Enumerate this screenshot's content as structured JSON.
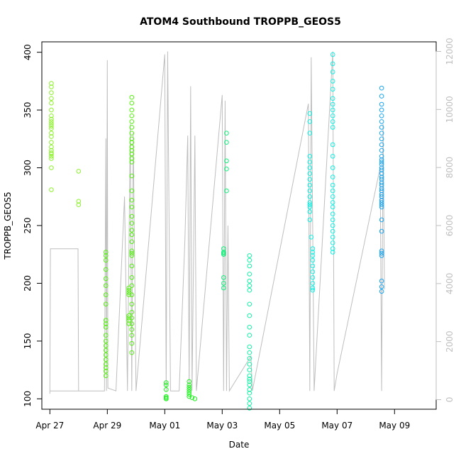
{
  "chart_data": {
    "type": "scatter",
    "title": "ATOM4 Southbound TROPPB_GEOS5",
    "xlabel": "Date",
    "ylabel": "TROPPB_GEOS5",
    "x_ticks": [
      "Apr 27",
      "Apr 29",
      "May 01",
      "May 03",
      "May 05",
      "May 07",
      "May 09"
    ],
    "x_tick_days": [
      0,
      2,
      4,
      6,
      8,
      10,
      12
    ],
    "xlim_days": [
      -0.28,
      13.45
    ],
    "y_ticks": [
      100,
      150,
      200,
      250,
      300,
      350,
      400
    ],
    "ylim": [
      91,
      409
    ],
    "y2_ticks": [
      0,
      2000,
      4000,
      6000,
      8000,
      10000,
      12000
    ],
    "y2lim": [
      -330,
      12330
    ],
    "grid": false,
    "legend": "none",
    "series": [
      {
        "color": "#8cf22b",
        "points": [
          [
            0.05,
            373
          ],
          [
            0.05,
            370
          ],
          [
            0.05,
            365
          ],
          [
            0.05,
            360
          ],
          [
            0.05,
            356
          ],
          [
            0.05,
            350
          ],
          [
            0.05,
            345
          ],
          [
            0.05,
            342
          ],
          [
            0.05,
            340
          ],
          [
            0.05,
            338
          ],
          [
            0.05,
            336
          ],
          [
            0.05,
            334
          ],
          [
            0.05,
            330
          ],
          [
            0.05,
            327
          ],
          [
            0.05,
            322
          ],
          [
            0.05,
            318
          ],
          [
            0.05,
            315
          ],
          [
            0.05,
            313
          ],
          [
            0.05,
            312
          ],
          [
            0.05,
            310
          ],
          [
            0.05,
            308
          ],
          [
            0.05,
            300
          ],
          [
            0.05,
            281
          ],
          [
            1.0,
            297
          ],
          [
            1.0,
            271
          ],
          [
            1.0,
            268
          ]
        ]
      },
      {
        "color": "#55f20f",
        "points": [
          [
            1.95,
            227
          ],
          [
            1.95,
            224
          ],
          [
            1.95,
            220
          ],
          [
            1.95,
            212
          ],
          [
            1.95,
            204
          ],
          [
            1.95,
            198
          ],
          [
            1.95,
            190
          ],
          [
            1.95,
            182
          ],
          [
            1.95,
            168
          ],
          [
            1.95,
            165
          ],
          [
            1.95,
            162
          ],
          [
            1.95,
            155
          ],
          [
            1.95,
            150
          ],
          [
            1.95,
            146
          ],
          [
            1.95,
            142
          ],
          [
            1.95,
            138
          ],
          [
            1.95,
            134
          ],
          [
            1.95,
            130
          ],
          [
            1.95,
            127
          ],
          [
            1.95,
            124
          ],
          [
            1.95,
            120
          ],
          [
            2.75,
            196
          ],
          [
            2.75,
            194
          ],
          [
            2.75,
            192
          ],
          [
            2.75,
            190
          ],
          [
            2.75,
            172
          ],
          [
            2.75,
            170
          ],
          [
            2.75,
            168
          ],
          [
            2.75,
            165
          ],
          [
            2.85,
            361
          ],
          [
            2.85,
            356
          ],
          [
            2.85,
            350
          ],
          [
            2.85,
            345
          ],
          [
            2.85,
            340
          ],
          [
            2.85,
            335
          ],
          [
            2.85,
            330
          ],
          [
            2.85,
            325
          ],
          [
            2.85,
            322
          ],
          [
            2.85,
            318
          ],
          [
            2.85,
            315
          ],
          [
            2.85,
            312
          ],
          [
            2.85,
            308
          ],
          [
            2.85,
            305
          ],
          [
            2.85,
            293
          ],
          [
            2.85,
            280
          ],
          [
            2.85,
            272
          ],
          [
            2.85,
            266
          ],
          [
            2.85,
            258
          ],
          [
            2.85,
            252
          ],
          [
            2.85,
            246
          ],
          [
            2.85,
            242
          ],
          [
            2.85,
            236
          ],
          [
            2.85,
            228
          ],
          [
            2.85,
            226
          ],
          [
            2.85,
            224
          ],
          [
            2.85,
            215
          ],
          [
            2.85,
            205
          ],
          [
            2.85,
            198
          ],
          [
            2.85,
            190
          ],
          [
            2.85,
            182
          ],
          [
            2.85,
            175
          ],
          [
            2.85,
            170
          ],
          [
            2.85,
            165
          ],
          [
            2.85,
            160
          ],
          [
            2.85,
            155
          ],
          [
            2.85,
            148
          ],
          [
            2.85,
            140
          ]
        ]
      },
      {
        "color": "#1cf21c",
        "points": [
          [
            4.05,
            114
          ],
          [
            4.05,
            112
          ],
          [
            4.05,
            108
          ],
          [
            4.05,
            102
          ],
          [
            4.05,
            101
          ],
          [
            4.05,
            100
          ],
          [
            4.05,
            100
          ],
          [
            4.85,
            115
          ],
          [
            4.85,
            112
          ],
          [
            4.85,
            110
          ],
          [
            4.85,
            108
          ],
          [
            4.85,
            106
          ],
          [
            4.85,
            104
          ],
          [
            4.85,
            102
          ],
          [
            4.95,
            101
          ],
          [
            5.05,
            100
          ]
        ]
      },
      {
        "color": "#0ff27a",
        "points": [
          [
            6.05,
            230
          ],
          [
            6.05,
            227
          ],
          [
            6.05,
            226
          ],
          [
            6.05,
            225
          ],
          [
            6.05,
            205
          ],
          [
            6.05,
            200
          ],
          [
            6.05,
            196
          ],
          [
            6.15,
            330
          ],
          [
            6.15,
            322
          ],
          [
            6.15,
            306
          ],
          [
            6.15,
            299
          ],
          [
            6.15,
            280
          ]
        ]
      },
      {
        "color": "#11f2a8",
        "points": [
          [
            6.95,
            224
          ],
          [
            6.95,
            220
          ],
          [
            6.95,
            215
          ],
          [
            6.95,
            208
          ],
          [
            6.95,
            202
          ],
          [
            6.95,
            198
          ],
          [
            6.95,
            194
          ],
          [
            6.95,
            182
          ],
          [
            6.95,
            172
          ],
          [
            6.95,
            162
          ],
          [
            6.95,
            155
          ],
          [
            6.95,
            145
          ],
          [
            6.95,
            140
          ],
          [
            6.95,
            135
          ],
          [
            6.95,
            130
          ],
          [
            6.95,
            125
          ],
          [
            6.95,
            120
          ],
          [
            6.95,
            117
          ],
          [
            6.95,
            115
          ],
          [
            6.95,
            112
          ],
          [
            6.95,
            108
          ],
          [
            6.95,
            105
          ],
          [
            6.95,
            100
          ],
          [
            6.95,
            96
          ],
          [
            6.95,
            92
          ]
        ]
      },
      {
        "color": "#0ff2e4",
        "points": [
          [
            9.05,
            347
          ],
          [
            9.05,
            340
          ],
          [
            9.05,
            330
          ],
          [
            9.05,
            310
          ],
          [
            9.05,
            305
          ],
          [
            9.05,
            300
          ],
          [
            9.05,
            295
          ],
          [
            9.05,
            290
          ],
          [
            9.05,
            285
          ],
          [
            9.05,
            280
          ],
          [
            9.05,
            275
          ],
          [
            9.05,
            270
          ],
          [
            9.05,
            268
          ],
          [
            9.05,
            266
          ],
          [
            9.05,
            262
          ],
          [
            9.05,
            255
          ],
          [
            9.1,
            240
          ],
          [
            9.15,
            230
          ],
          [
            9.15,
            227
          ],
          [
            9.15,
            224
          ],
          [
            9.15,
            220
          ],
          [
            9.15,
            215
          ],
          [
            9.15,
            210
          ],
          [
            9.15,
            205
          ],
          [
            9.15,
            200
          ],
          [
            9.15,
            196
          ],
          [
            9.15,
            194
          ],
          [
            9.85,
            398
          ],
          [
            9.85,
            390
          ],
          [
            9.85,
            383
          ],
          [
            9.85,
            375
          ],
          [
            9.85,
            368
          ],
          [
            9.85,
            360
          ],
          [
            9.85,
            355
          ],
          [
            9.85,
            350
          ],
          [
            9.85,
            345
          ],
          [
            9.85,
            340
          ],
          [
            9.85,
            335
          ],
          [
            9.85,
            320
          ],
          [
            9.85,
            310
          ],
          [
            9.85,
            300
          ],
          [
            9.85,
            292
          ],
          [
            9.85,
            285
          ],
          [
            9.85,
            280
          ],
          [
            9.85,
            275
          ],
          [
            9.85,
            270
          ],
          [
            9.85,
            266
          ],
          [
            9.85,
            260
          ],
          [
            9.85,
            255
          ],
          [
            9.85,
            250
          ],
          [
            9.85,
            245
          ],
          [
            9.85,
            240
          ],
          [
            9.85,
            235
          ],
          [
            9.85,
            230
          ],
          [
            9.85,
            227
          ]
        ]
      },
      {
        "color": "#1aa6f2",
        "points": [
          [
            11.55,
            369
          ],
          [
            11.55,
            362
          ],
          [
            11.55,
            355
          ],
          [
            11.55,
            350
          ],
          [
            11.55,
            345
          ],
          [
            11.55,
            340
          ],
          [
            11.55,
            335
          ],
          [
            11.55,
            330
          ],
          [
            11.55,
            325
          ],
          [
            11.55,
            320
          ],
          [
            11.55,
            315
          ],
          [
            11.55,
            310
          ],
          [
            11.55,
            307
          ],
          [
            11.55,
            305
          ],
          [
            11.55,
            303
          ],
          [
            11.55,
            300
          ],
          [
            11.55,
            298
          ],
          [
            11.55,
            295
          ],
          [
            11.55,
            292
          ],
          [
            11.55,
            290
          ],
          [
            11.55,
            287
          ],
          [
            11.55,
            285
          ],
          [
            11.55,
            282
          ],
          [
            11.55,
            280
          ],
          [
            11.55,
            277
          ],
          [
            11.55,
            275
          ],
          [
            11.55,
            272
          ],
          [
            11.55,
            270
          ],
          [
            11.55,
            268
          ],
          [
            11.55,
            266
          ],
          [
            11.55,
            255
          ],
          [
            11.55,
            245
          ],
          [
            11.55,
            228
          ],
          [
            11.55,
            226
          ],
          [
            11.55,
            224
          ],
          [
            11.55,
            202
          ],
          [
            11.55,
            197
          ],
          [
            11.55,
            193
          ]
        ]
      }
    ],
    "altitude_series": {
      "color": "#bebebe",
      "axis": "right",
      "points": [
        [
          0.0,
          200
        ],
        [
          0.02,
          5200
        ],
        [
          0.98,
          5200
        ],
        [
          1.0,
          300
        ],
        [
          0.0,
          300
        ],
        [
          0.1,
          300
        ],
        [
          1.9,
          300
        ],
        [
          1.95,
          9000
        ],
        [
          1.97,
          300
        ],
        [
          2.0,
          11700
        ],
        [
          2.02,
          400
        ],
        [
          2.3,
          300
        ],
        [
          2.6,
          7000
        ],
        [
          2.7,
          300
        ],
        [
          2.8,
          9500
        ],
        [
          2.85,
          300
        ],
        [
          2.9,
          9200
        ],
        [
          3.0,
          300
        ],
        [
          4.0,
          11900
        ],
        [
          4.05,
          300
        ],
        [
          4.1,
          12000
        ],
        [
          4.2,
          300
        ],
        [
          4.5,
          300
        ],
        [
          4.7,
          5500
        ],
        [
          4.8,
          9100
        ],
        [
          4.85,
          300
        ],
        [
          4.9,
          10800
        ],
        [
          4.95,
          300
        ],
        [
          5.05,
          9100
        ],
        [
          5.1,
          300
        ],
        [
          6.0,
          10500
        ],
        [
          6.05,
          300
        ],
        [
          6.1,
          10300
        ],
        [
          6.15,
          300
        ],
        [
          6.2,
          6000
        ],
        [
          6.25,
          300
        ],
        [
          7.0,
          1500
        ],
        [
          7.05,
          300
        ],
        [
          9.0,
          10200
        ],
        [
          9.05,
          300
        ],
        [
          9.1,
          11800
        ],
        [
          9.2,
          300
        ],
        [
          9.85,
          12000
        ],
        [
          9.9,
          300
        ],
        [
          10.0,
          900
        ],
        [
          11.5,
          8000
        ],
        [
          11.55,
          300
        ],
        [
          11.6,
          9500
        ],
        [
          11.65,
          3800
        ]
      ]
    }
  }
}
